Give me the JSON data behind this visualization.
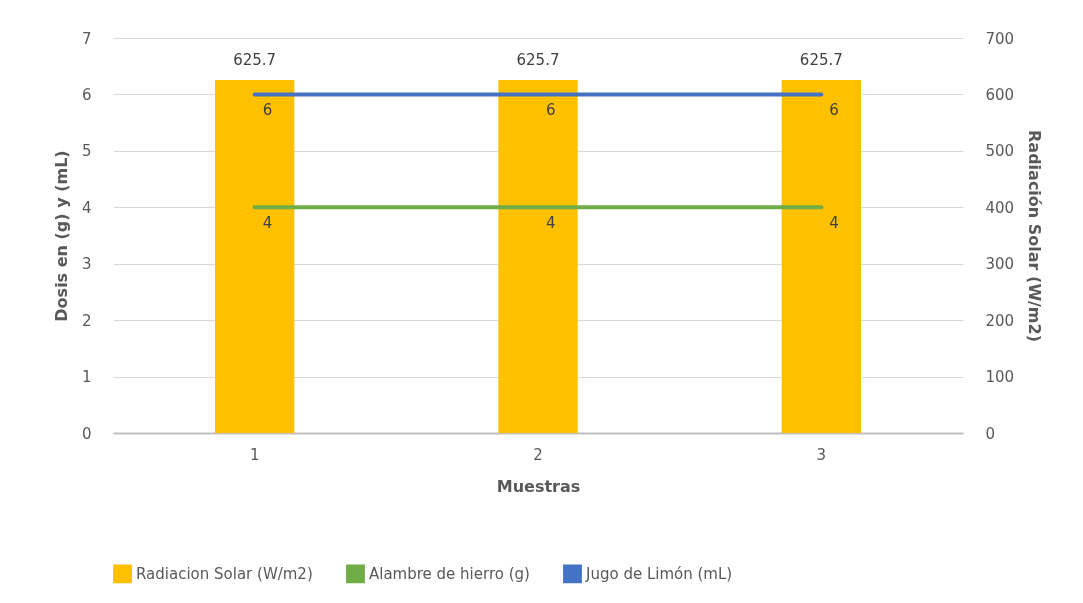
{
  "chart_data": {
    "type": "bar",
    "categories": [
      "1",
      "2",
      "3"
    ],
    "xlabel": "Muestras",
    "ylabel": "Dosis en (g) y (mL)",
    "y2label": "Radiación Solar (W/m2)",
    "ylim": [
      0,
      7
    ],
    "yticks": [
      0,
      1,
      2,
      3,
      4,
      5,
      6,
      7
    ],
    "y2lim": [
      0,
      700
    ],
    "y2ticks": [
      0,
      100,
      200,
      300,
      400,
      500,
      600,
      700
    ],
    "grid": "y",
    "legend": "bottom",
    "data_labels": true,
    "marker": "none",
    "series": [
      {
        "name": "Radiacion Solar (W/m2)",
        "axis": "y2",
        "color": "#ffc000",
        "values": [
          625.7,
          625.7,
          625.7
        ]
      },
      {
        "name": "Alambre de hierro (g)",
        "type": "line",
        "color": "#70ad47",
        "values": [
          4,
          4,
          4
        ]
      },
      {
        "name": "Jugo de Limón (mL)",
        "type": "line",
        "color": "#4472c4",
        "values": [
          6,
          6,
          6
        ]
      }
    ]
  }
}
